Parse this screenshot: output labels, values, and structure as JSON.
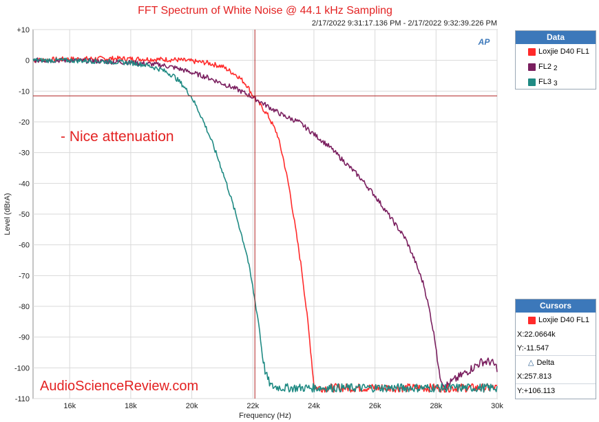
{
  "header": {
    "title": "FFT Spectrum of White Noise @ 44.1 kHz Sampling",
    "timestamp": "2/17/2022 9:31:17.136 PM - 2/17/2022 9:32:39.226 PM",
    "logo_text": "AP"
  },
  "annotations": {
    "note": "- Nice attenuation",
    "watermark": "AudioScienceReview.com"
  },
  "legend": {
    "title": "Data",
    "items": [
      {
        "label": "Loxjie D40 FL1",
        "sub": "",
        "color": "#ff2a2a"
      },
      {
        "label": "FL2",
        "sub": "2",
        "color": "#7a1f5f"
      },
      {
        "label": "FL3",
        "sub": "3",
        "color": "#1f8a83"
      }
    ]
  },
  "cursors": {
    "title": "Cursors",
    "series_label": "Loxjie D40 FL1",
    "series_color": "#ff2a2a",
    "x_readout": "X:22.0664k",
    "y_readout": "Y:-11.547",
    "delta_label": "Delta",
    "delta_x": "X:257.813",
    "delta_y": "Y:+106.113"
  },
  "chart_data": {
    "type": "line",
    "title": "FFT Spectrum of White Noise @ 44.1 kHz Sampling",
    "xlabel": "Frequency (Hz)",
    "ylabel": "Level (dBrA)",
    "xlim": [
      14800,
      30000
    ],
    "ylim": [
      -110,
      10
    ],
    "x_ticks": [
      16000,
      18000,
      20000,
      22000,
      24000,
      26000,
      28000,
      30000
    ],
    "x_tick_labels": [
      "16k",
      "18k",
      "20k",
      "22k",
      "24k",
      "26k",
      "28k",
      "30k"
    ],
    "y_ticks": [
      10,
      0,
      -10,
      -20,
      -30,
      -40,
      -50,
      -60,
      -70,
      -80,
      -90,
      -100,
      -110
    ],
    "y_tick_labels": [
      "+10",
      "0",
      "-10",
      "-20",
      "-30",
      "-40",
      "-50",
      "-60",
      "-70",
      "-80",
      "-90",
      "-100",
      "-110"
    ],
    "grid": true,
    "legend_position": "right",
    "cursor": {
      "x": 22066.4,
      "y": -11.547
    },
    "series": [
      {
        "name": "Loxjie D40 FL1",
        "color": "#ff2a2a",
        "x": [
          14800,
          15500,
          16500,
          17500,
          18500,
          19500,
          20500,
          21000,
          21500,
          21800,
          22000,
          22200,
          22500,
          22800,
          23000,
          23200,
          23400,
          23600,
          23800,
          23950,
          24000,
          24100,
          25000,
          26000,
          27000,
          28000,
          29000,
          30000
        ],
        "values": [
          0,
          0.3,
          0.5,
          0.6,
          0.4,
          0.2,
          -0.8,
          -2,
          -5,
          -8,
          -11.5,
          -14,
          -18,
          -24,
          -32,
          -42,
          -55,
          -68,
          -85,
          -100,
          -106,
          -106.5,
          -106.5,
          -106.5,
          -106.5,
          -106.5,
          -106.5,
          -106.5
        ]
      },
      {
        "name": "FL2",
        "color": "#7a1f5f",
        "x": [
          14800,
          16000,
          17000,
          18000,
          19000,
          19500,
          20000,
          20500,
          21000,
          21500,
          22000,
          22500,
          23000,
          23500,
          24000,
          24500,
          25000,
          25500,
          26000,
          26500,
          27000,
          27300,
          27600,
          27800,
          28000,
          28100,
          28300,
          28600,
          28900,
          29200,
          29500,
          29800,
          30000
        ],
        "values": [
          0,
          0,
          -0.3,
          -0.7,
          -1.5,
          -2.5,
          -4,
          -5.5,
          -7.5,
          -9.5,
          -12,
          -15,
          -18,
          -20,
          -24,
          -28,
          -33,
          -38,
          -44,
          -51,
          -58,
          -65,
          -73,
          -82,
          -93,
          -102,
          -106,
          -104,
          -102,
          -100,
          -98,
          -98,
          -100
        ]
      },
      {
        "name": "FL3",
        "color": "#1f8a83",
        "x": [
          14800,
          16000,
          17000,
          18000,
          18500,
          19000,
          19400,
          19700,
          20000,
          20300,
          20600,
          20900,
          21200,
          21500,
          21800,
          22000,
          22200,
          22300,
          22400,
          22500,
          22600,
          23000,
          24000,
          25000,
          26000,
          27000,
          28000,
          29000,
          30000
        ],
        "values": [
          0,
          0,
          -0.3,
          -0.8,
          -1.5,
          -3,
          -5,
          -8,
          -12,
          -18,
          -25,
          -33,
          -42,
          -52,
          -63,
          -74,
          -86,
          -95,
          -101,
          -104,
          -106,
          -106.5,
          -106.5,
          -106.5,
          -106.5,
          -106.5,
          -106.5,
          -106.5,
          -106.5
        ]
      }
    ]
  }
}
